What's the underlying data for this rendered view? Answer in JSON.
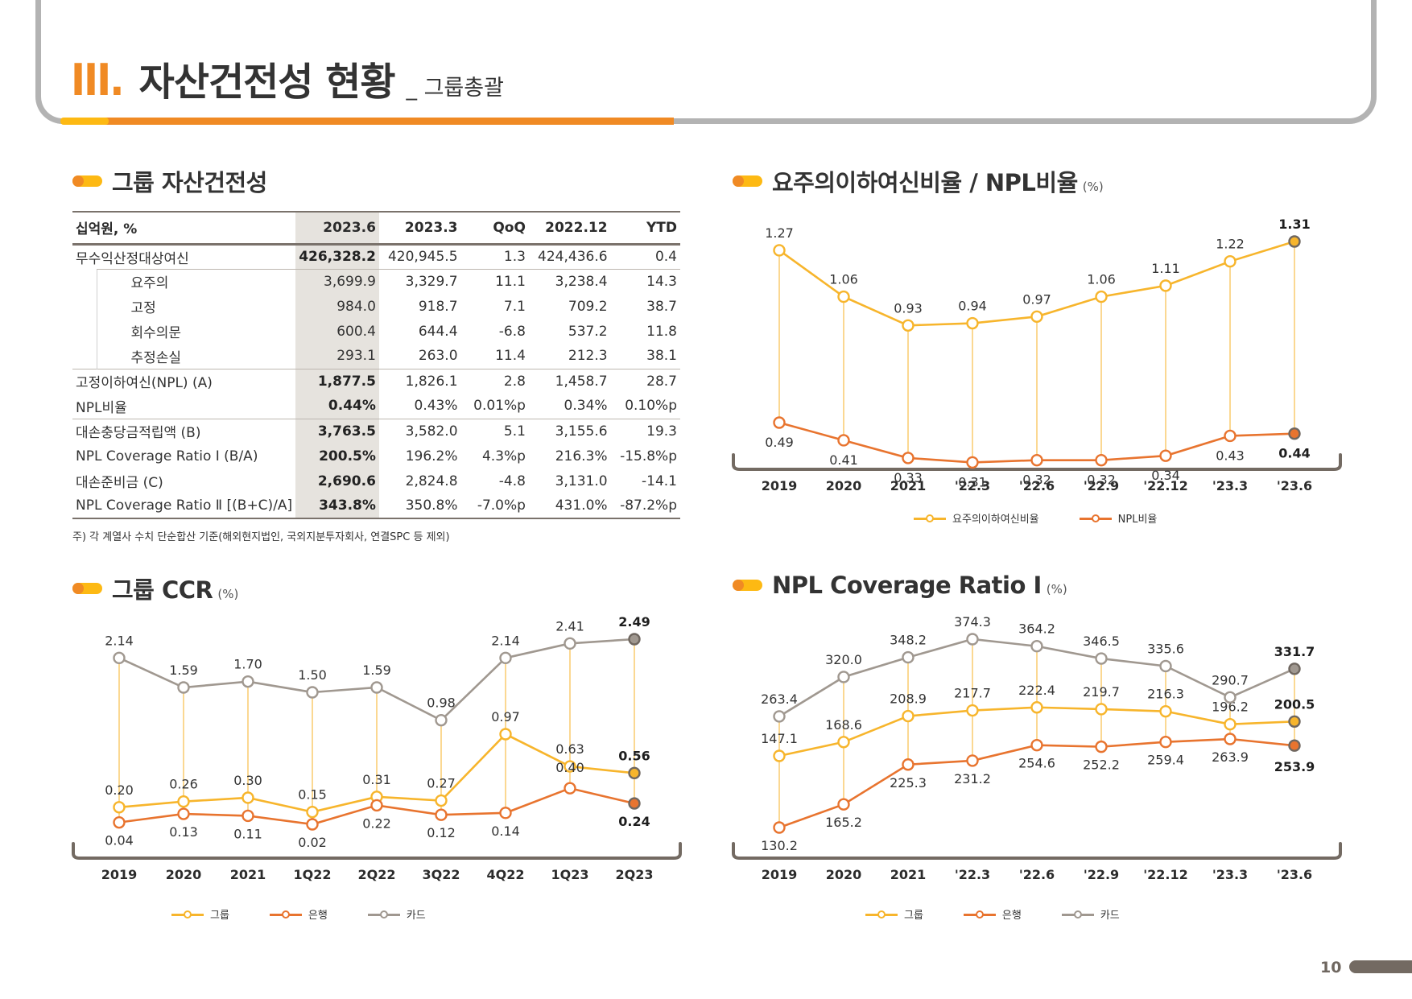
{
  "header": {
    "section_number": "III.",
    "title": "자산건전성 현황",
    "subtitle": "_ 그룹총괄"
  },
  "table_section": {
    "title": "그룹 자산건전성",
    "columns": [
      "십억원, %",
      "2023.6",
      "2023.3",
      "QoQ",
      "2022.12",
      "YTD"
    ],
    "rows": [
      {
        "label": "무수익산정대상여신",
        "values": [
          "426,328.2",
          "420,945.5",
          "1.3",
          "424,436.6",
          "0.4"
        ],
        "indent": false
      },
      {
        "label": "요주의",
        "values": [
          "3,699.9",
          "3,329.7",
          "11.1",
          "3,238.4",
          "14.3"
        ],
        "indent": true
      },
      {
        "label": "고정",
        "values": [
          "984.0",
          "918.7",
          "7.1",
          "709.2",
          "38.7"
        ],
        "indent": true
      },
      {
        "label": "회수의문",
        "values": [
          "600.4",
          "644.4",
          "-6.8",
          "537.2",
          "11.8"
        ],
        "indent": true
      },
      {
        "label": "추정손실",
        "values": [
          "293.1",
          "263.0",
          "11.4",
          "212.3",
          "38.1"
        ],
        "indent": true
      },
      {
        "label": "고정이하여신(NPL) (A)",
        "values": [
          "1,877.5",
          "1,826.1",
          "2.8",
          "1,458.7",
          "28.7"
        ],
        "indent": false
      },
      {
        "label": "NPL비율",
        "values": [
          "0.44%",
          "0.43%",
          "0.01%p",
          "0.34%",
          "0.10%p"
        ],
        "indent": false
      },
      {
        "label": "대손충당금적립액 (B)",
        "values": [
          "3,763.5",
          "3,582.0",
          "5.1",
          "3,155.6",
          "19.3"
        ],
        "indent": false
      },
      {
        "label": "NPL Coverage Ratio Ⅰ (B/A)",
        "values": [
          "200.5%",
          "196.2%",
          "4.3%p",
          "216.3%",
          "-15.8%p"
        ],
        "indent": false
      },
      {
        "label": "대손준비금 (C)",
        "values": [
          "2,690.6",
          "2,824.8",
          "-4.8",
          "3,131.0",
          "-14.1"
        ],
        "indent": false
      },
      {
        "label": "NPL Coverage Ratio Ⅱ [(B+C)/A]",
        "values": [
          "343.8%",
          "350.8%",
          "-7.0%p",
          "431.0%",
          "-87.2%p"
        ],
        "indent": false
      }
    ],
    "footnote": "주) 각 계열사 수치 단순합산 기준(해외현지법인, 국외지분투자회사, 연결SPC 등 제외)"
  },
  "colors": {
    "group": "#f7b52c",
    "bank": "#e8742f",
    "card": "#a09890",
    "axis": "#736a62",
    "accent": "#f08a24"
  },
  "chart_data": [
    {
      "id": "precautionary_npl",
      "type": "line",
      "title": "요주의이하여신비율 / NPL비율",
      "unit": "(%)",
      "categories": [
        "2019",
        "2020",
        "2021",
        "'22.3",
        "'22.6",
        "'22.9",
        "'22.12",
        "'23.3",
        "'23.6"
      ],
      "series": [
        {
          "name": "요주의이하여신비율",
          "color_key": "group",
          "values": [
            1.27,
            1.06,
            0.93,
            0.94,
            0.97,
            1.06,
            1.11,
            1.22,
            1.31
          ],
          "labels": [
            "1.27",
            "1.06",
            "0.93",
            "0.94",
            "0.97",
            "1.06",
            "1.11",
            "1.22",
            "1.31"
          ],
          "label_pos": "above"
        },
        {
          "name": "NPL비율",
          "color_key": "bank",
          "values": [
            0.49,
            0.41,
            0.33,
            0.31,
            0.32,
            0.32,
            0.34,
            0.43,
            0.44
          ],
          "labels": [
            "0.49",
            "0.41",
            "0.33",
            "0.31",
            "0.32",
            "0.32",
            "0.34",
            "0.43",
            "0.44"
          ],
          "label_pos": "below"
        }
      ],
      "ylim": [
        0.1,
        1.4
      ],
      "legend": "bottom-center",
      "grid": false
    },
    {
      "id": "group_ccr",
      "type": "line",
      "title": "그룹 CCR",
      "unit": "(%)",
      "categories": [
        "2019",
        "2020",
        "2021",
        "1Q22",
        "2Q22",
        "3Q22",
        "4Q22",
        "1Q23",
        "2Q23"
      ],
      "series": [
        {
          "name": "그룹",
          "color_key": "group",
          "values": [
            0.2,
            0.26,
            0.3,
            0.15,
            0.31,
            0.27,
            0.97,
            0.63,
            0.56
          ],
          "labels": [
            "0.20",
            "0.26",
            "0.30",
            "0.15",
            "0.31",
            "0.27",
            "0.97",
            "0.63",
            "0.56"
          ],
          "label_pos": "above"
        },
        {
          "name": "은행",
          "color_key": "bank",
          "values": [
            0.04,
            0.13,
            0.11,
            0.02,
            0.22,
            0.12,
            0.14,
            0.4,
            0.24
          ],
          "labels": [
            "0.04",
            "0.13",
            "0.11",
            "0.02",
            "0.22",
            "0.12",
            "0.14",
            "0.40",
            "0.24"
          ],
          "label_pos": "below"
        },
        {
          "name": "카드",
          "color_key": "card",
          "values": [
            2.14,
            1.59,
            1.7,
            1.5,
            1.59,
            0.98,
            2.14,
            2.41,
            2.49
          ],
          "labels": [
            "2.14",
            "1.59",
            "1.70",
            "1.50",
            "1.59",
            "0.98",
            "2.14",
            "2.41",
            "2.49"
          ],
          "label_pos": "above"
        }
      ],
      "legend": "bottom-center",
      "grid": false
    },
    {
      "id": "npl_coverage_1",
      "type": "line",
      "title": "NPL Coverage Ratio Ⅰ",
      "unit": "(%)",
      "categories": [
        "2019",
        "2020",
        "2021",
        "'22.3",
        "'22.6",
        "'22.9",
        "'22.12",
        "'23.3",
        "'23.6"
      ],
      "series": [
        {
          "name": "그룹",
          "color_key": "group",
          "values": [
            147.1,
            168.6,
            208.9,
            217.7,
            222.4,
            219.7,
            216.3,
            196.2,
            200.5
          ],
          "labels": [
            "147.1",
            "168.6",
            "208.9",
            "217.7",
            "222.4",
            "219.7",
            "216.3",
            "196.2",
            "200.5"
          ],
          "label_pos": "above"
        },
        {
          "name": "은행",
          "color_key": "bank",
          "values": [
            130.2,
            165.2,
            225.3,
            231.2,
            254.6,
            252.2,
            259.4,
            263.9,
            253.9
          ],
          "labels": [
            "130.2",
            "165.2",
            "225.3",
            "231.2",
            "254.6",
            "252.2",
            "259.4",
            "263.9",
            "253.9"
          ],
          "label_pos": "below"
        },
        {
          "name": "카드",
          "color_key": "card",
          "values": [
            263.4,
            320.0,
            348.2,
            374.3,
            364.2,
            346.5,
            335.6,
            290.7,
            331.7
          ],
          "labels": [
            "263.4",
            "320.0",
            "348.2",
            "374.3",
            "364.2",
            "346.5",
            "335.6",
            "290.7",
            "331.7"
          ],
          "label_pos": "above"
        }
      ],
      "legend": "bottom-center",
      "grid": false
    }
  ],
  "footer": {
    "page_number": "10"
  }
}
